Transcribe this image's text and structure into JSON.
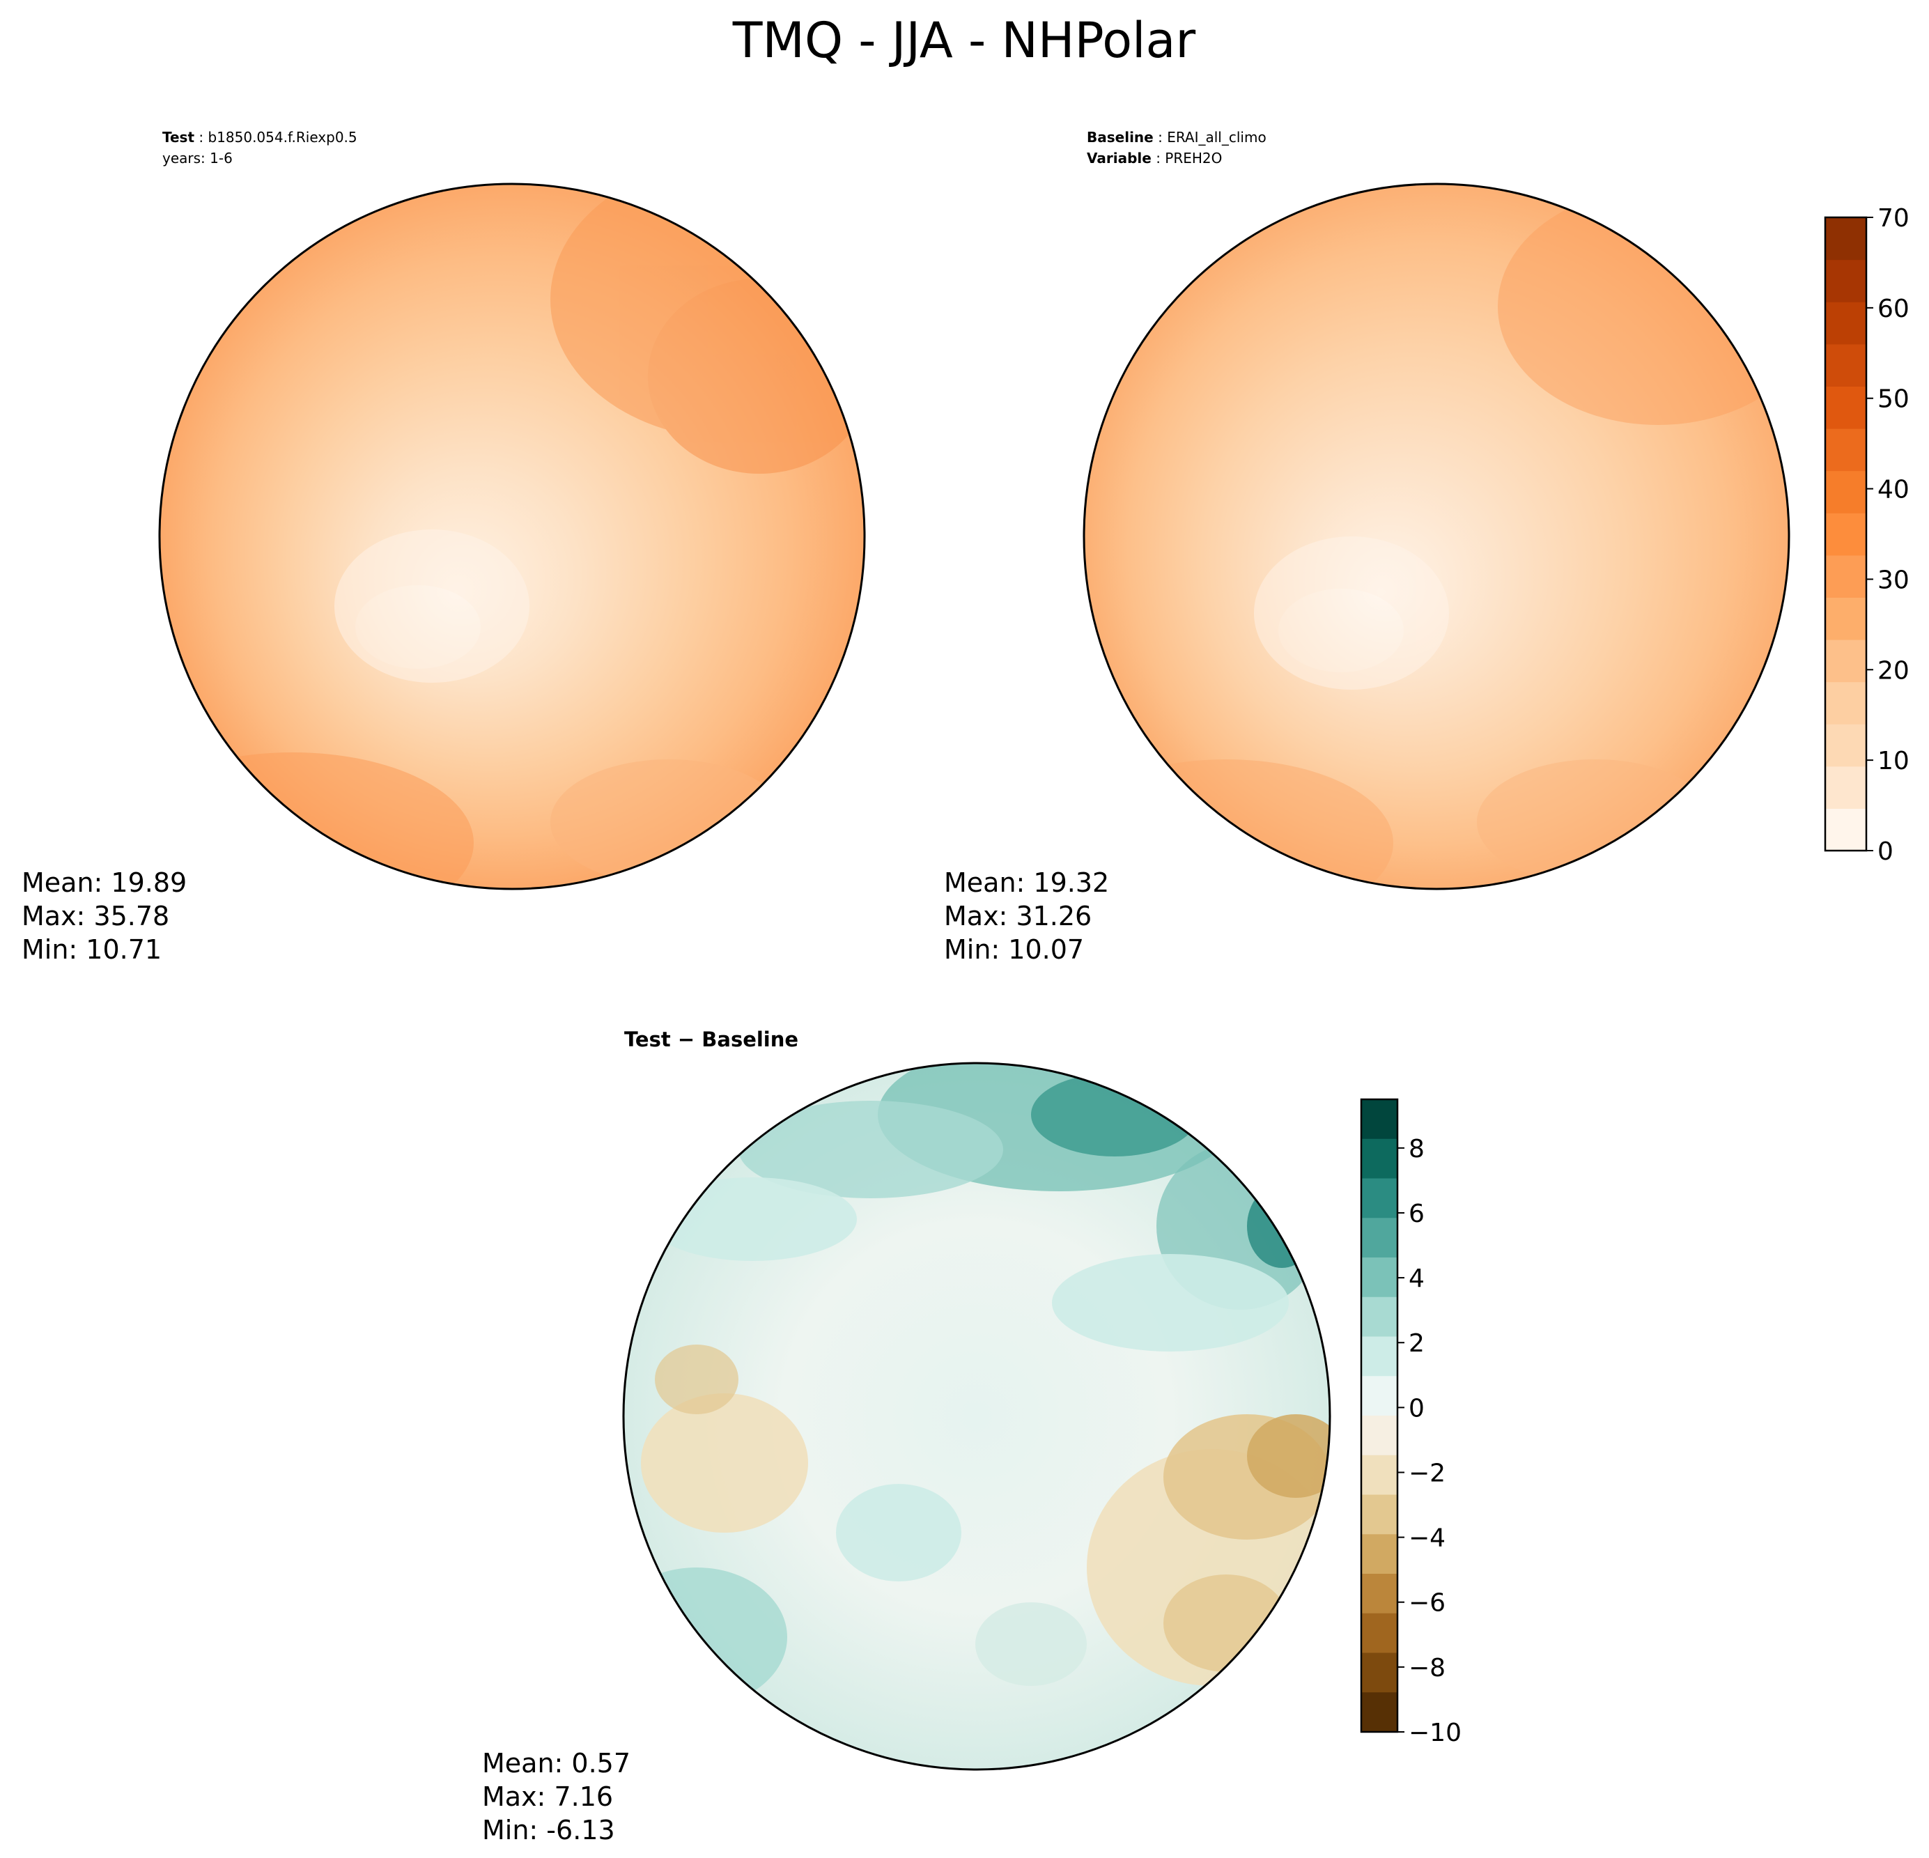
{
  "figure": {
    "title": "TMQ - JJA - NHPolar"
  },
  "panels": {
    "test": {
      "label_key": "Test",
      "label_value": "b1850.054.f.Riexp0.5",
      "line2": "years: 1-6",
      "stats": {
        "mean": "Mean: 19.89",
        "max": "Max: 35.78",
        "min": "Min: 10.71"
      }
    },
    "baseline": {
      "label_key": "Baseline",
      "label_value": "ERAI_all_climo",
      "var_key": "Variable",
      "var_value": "PREH2O",
      "stats": {
        "mean": "Mean: 19.32",
        "max": "Max: 31.26",
        "min": "Min: 10.07"
      }
    },
    "diff": {
      "label_key": "Test",
      "label_sep": "−",
      "label_value": "Baseline",
      "stats": {
        "mean": "Mean:  0.57",
        "max": "Max:  7.16",
        "min": "Min: -6.13"
      }
    }
  },
  "colorbars": {
    "main": {
      "ticks": [
        "0",
        "10",
        "20",
        "30",
        "40",
        "50",
        "60",
        "70"
      ],
      "colors": [
        "#fff5eb",
        "#fee6ce",
        "#fdd9b4",
        "#fdcfa2",
        "#fdc08a",
        "#fdae6b",
        "#fd9d55",
        "#fd8d3c",
        "#f67d2a",
        "#ec6b1d",
        "#e0580f",
        "#cf4c0a",
        "#bc4004",
        "#a73603",
        "#8f3002"
      ]
    },
    "diff": {
      "ticks": [
        "8",
        "6",
        "4",
        "2",
        "0",
        "−2",
        "−4",
        "−6",
        "−8",
        "−10"
      ],
      "colors": [
        "#01463d",
        "#0d6a5e",
        "#2b8c82",
        "#50a79d",
        "#7bc2b8",
        "#a8dad2",
        "#cdece7",
        "#ecf6f4",
        "#f6efe2",
        "#f0e0bd",
        "#e3c890",
        "#d1a962",
        "#bb863b",
        "#a0661f",
        "#7d4a0e",
        "#573005"
      ]
    }
  },
  "chart_data": [
    {
      "type": "heatmap",
      "projection": "north polar stereographic",
      "title": "Test : b1850.054.f.Riexp0.5",
      "subtitle": "years: 1-6",
      "colorbar_range": [
        0,
        70
      ],
      "colorbar_ticks": [
        0,
        10,
        20,
        30,
        40,
        50,
        60,
        70
      ],
      "mean": 19.89,
      "max": 35.78,
      "min": 10.71
    },
    {
      "type": "heatmap",
      "projection": "north polar stereographic",
      "title": "Baseline : ERAI_all_climo",
      "subtitle": "Variable : PREH2O",
      "colorbar_range": [
        0,
        70
      ],
      "colorbar_ticks": [
        0,
        10,
        20,
        30,
        40,
        50,
        60,
        70
      ],
      "mean": 19.32,
      "max": 31.26,
      "min": 10.07
    },
    {
      "type": "heatmap",
      "projection": "north polar stereographic",
      "title": "Test − Baseline",
      "colorbar_range": [
        -10,
        9.5
      ],
      "colorbar_ticks": [
        -10,
        -8,
        -6,
        -4,
        -2,
        0,
        2,
        4,
        6,
        8
      ],
      "mean": 0.57,
      "max": 7.16,
      "min": -6.13
    }
  ]
}
